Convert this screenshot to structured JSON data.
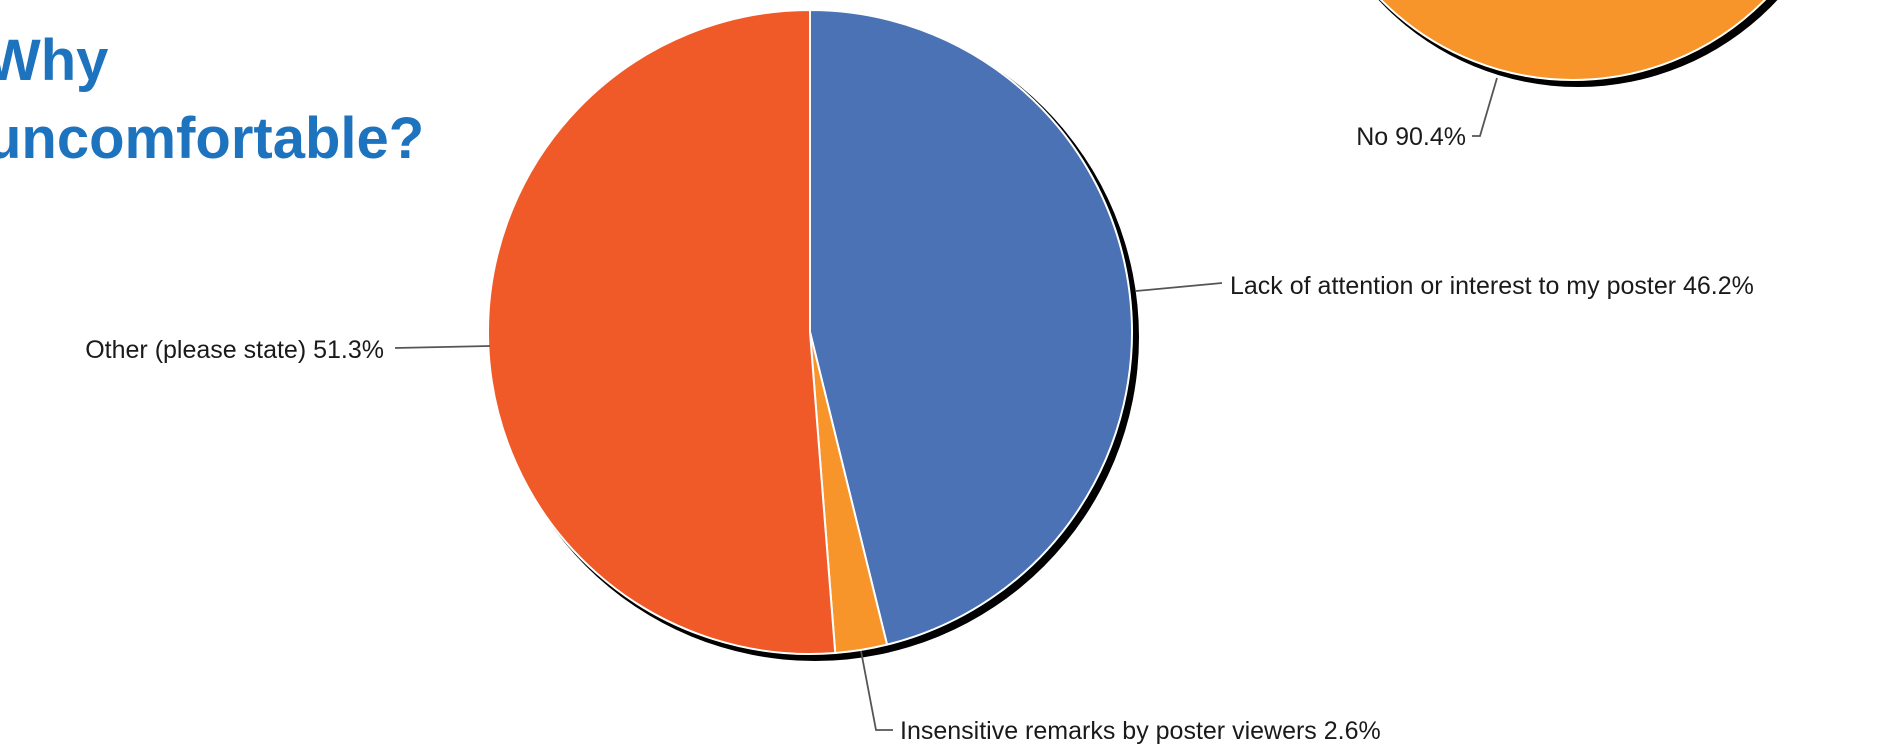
{
  "title": {
    "line1": "Why",
    "line2": "uncomfortable?"
  },
  "chart_data": [
    {
      "type": "pie",
      "title": "Why uncomfortable?",
      "slices": [
        {
          "label": "Lack of attention or interest to my poster",
          "value": 46.2,
          "display": "Lack of attention or interest to my poster 46.2%",
          "color": "#4a72b5"
        },
        {
          "label": "Insensitive remarks by poster viewers",
          "value": 2.6,
          "display": "Insensitive remarks by poster viewers 2.6%",
          "color": "#f7952a"
        },
        {
          "label": "Other (please state)",
          "value": 51.3,
          "display": "Other (please state) 51.3%",
          "color": "#f05a28"
        }
      ],
      "start_angle_deg": 0,
      "direction": "clockwise",
      "legend": "none"
    },
    {
      "type": "pie",
      "partial_view": true,
      "slices": [
        {
          "label": "No",
          "value": 90.4,
          "display": "No 90.4%",
          "color": "#f7952a"
        }
      ]
    }
  ]
}
